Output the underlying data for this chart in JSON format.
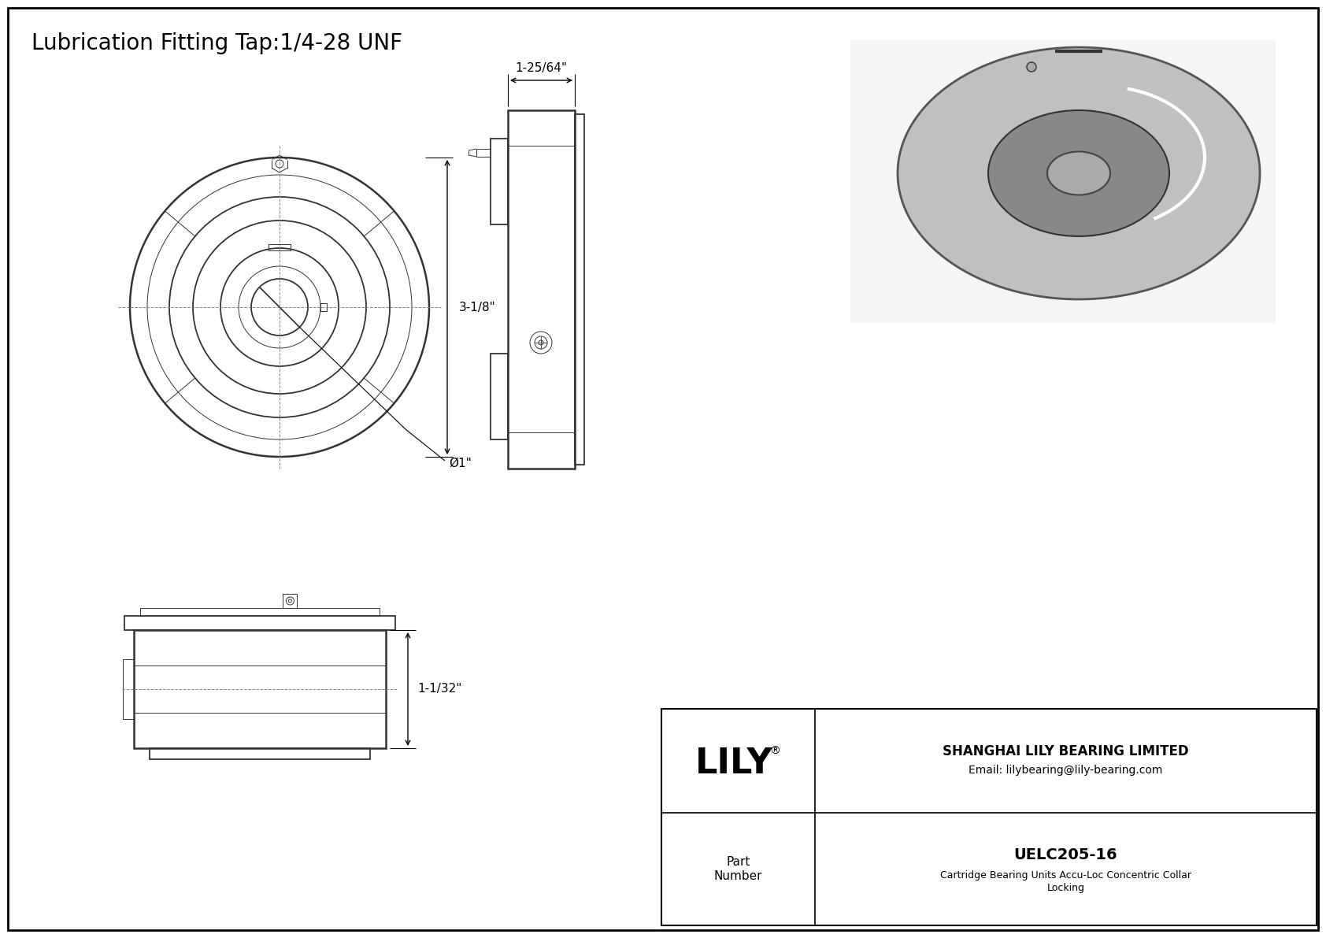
{
  "background_color": "#ffffff",
  "border_color": "#000000",
  "title": "Lubrication Fitting Tap:1/4-28 UNF",
  "title_fontsize": 20,
  "dim_color": "#000000",
  "line_color": "#333333",
  "drawing_line_color": "#333333",
  "annotation_fontsize": 11,
  "company_name": "SHANGHAI LILY BEARING LIMITED",
  "company_email": "Email: lilybearing@lily-bearing.com",
  "part_number_label": "Part\nNumber",
  "part_number": "UELC205-16",
  "part_description_line1": "Cartridge Bearing Units Accu-Loc Concentric Collar",
  "part_description_line2": "Locking",
  "lily_logo": "LILY",
  "dim_3_1_8": "3-1/8\"",
  "dim_bore": "Ø1\"",
  "dim_1_25_64": "1-25/64\"",
  "dim_1_1_32": "1-1/32\""
}
